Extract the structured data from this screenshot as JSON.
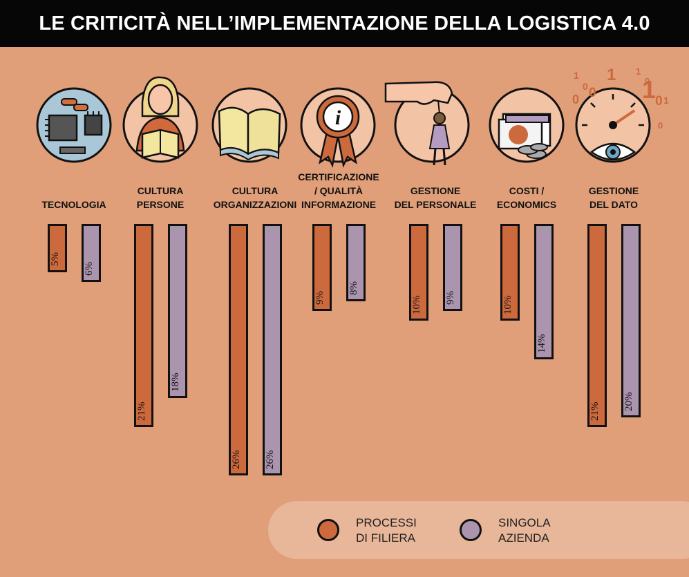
{
  "header": {
    "title": "LE CRITICITÀ NELL’IMPLEMENTAZIONE DELLA LOGISTICA 4.0"
  },
  "chart_data": {
    "type": "bar",
    "title": "LE CRITICITÀ NELL’IMPLEMENTAZIONE DELLA LOGISTICA 4.0",
    "categories": [
      [
        "TECNOLOGIA"
      ],
      [
        "CULTURA",
        "PERSONE"
      ],
      [
        "CULTURA",
        "ORGANIZZAZIONI"
      ],
      [
        "CERTIFICAZIONE",
        "/ QUALITÀ",
        "INFORMAZIONE"
      ],
      [
        "GESTIONE",
        "DEL PERSONALE"
      ],
      [
        "COSTI /",
        "ECONOMICS"
      ],
      [
        "GESTIONE",
        "DEL DATO"
      ]
    ],
    "series": [
      {
        "name": "PROCESSI DI FILIERA",
        "legend_lines": [
          "PROCESSI",
          "DI FILIERA"
        ],
        "color": "#cd6a3d",
        "values": [
          5,
          21,
          26,
          9,
          10,
          10,
          21
        ],
        "labels": [
          "5%",
          "21%",
          "26%",
          "9%",
          "10%",
          "10%",
          "21%"
        ]
      },
      {
        "name": "SINGOLA AZIENDA",
        "legend_lines": [
          "SINGOLA",
          "AZIENDA"
        ],
        "color": "#ab95ae",
        "values": [
          6,
          18,
          26,
          8,
          9,
          14,
          20
        ],
        "labels": [
          "6%",
          "18%",
          "26%",
          "8%",
          "9%",
          "14%",
          "20%"
        ]
      }
    ],
    "xlabel": "",
    "ylabel": "",
    "legend": "bottom-right",
    "grid": false
  },
  "icons": [
    "microchip-icon",
    "reading-person-icon",
    "open-book-icon",
    "certification-badge-icon",
    "hand-puppet-person-icon",
    "money-coins-icon",
    "data-gauge-eye-icon"
  ],
  "gauge_digits": [
    "1",
    "0",
    "1",
    "0",
    "1",
    "0",
    "0",
    "1",
    "0",
    "1",
    "0",
    "0"
  ],
  "colors": {
    "background": "#e09e79",
    "header": "#060606",
    "legend_bg": "#e8b698"
  }
}
